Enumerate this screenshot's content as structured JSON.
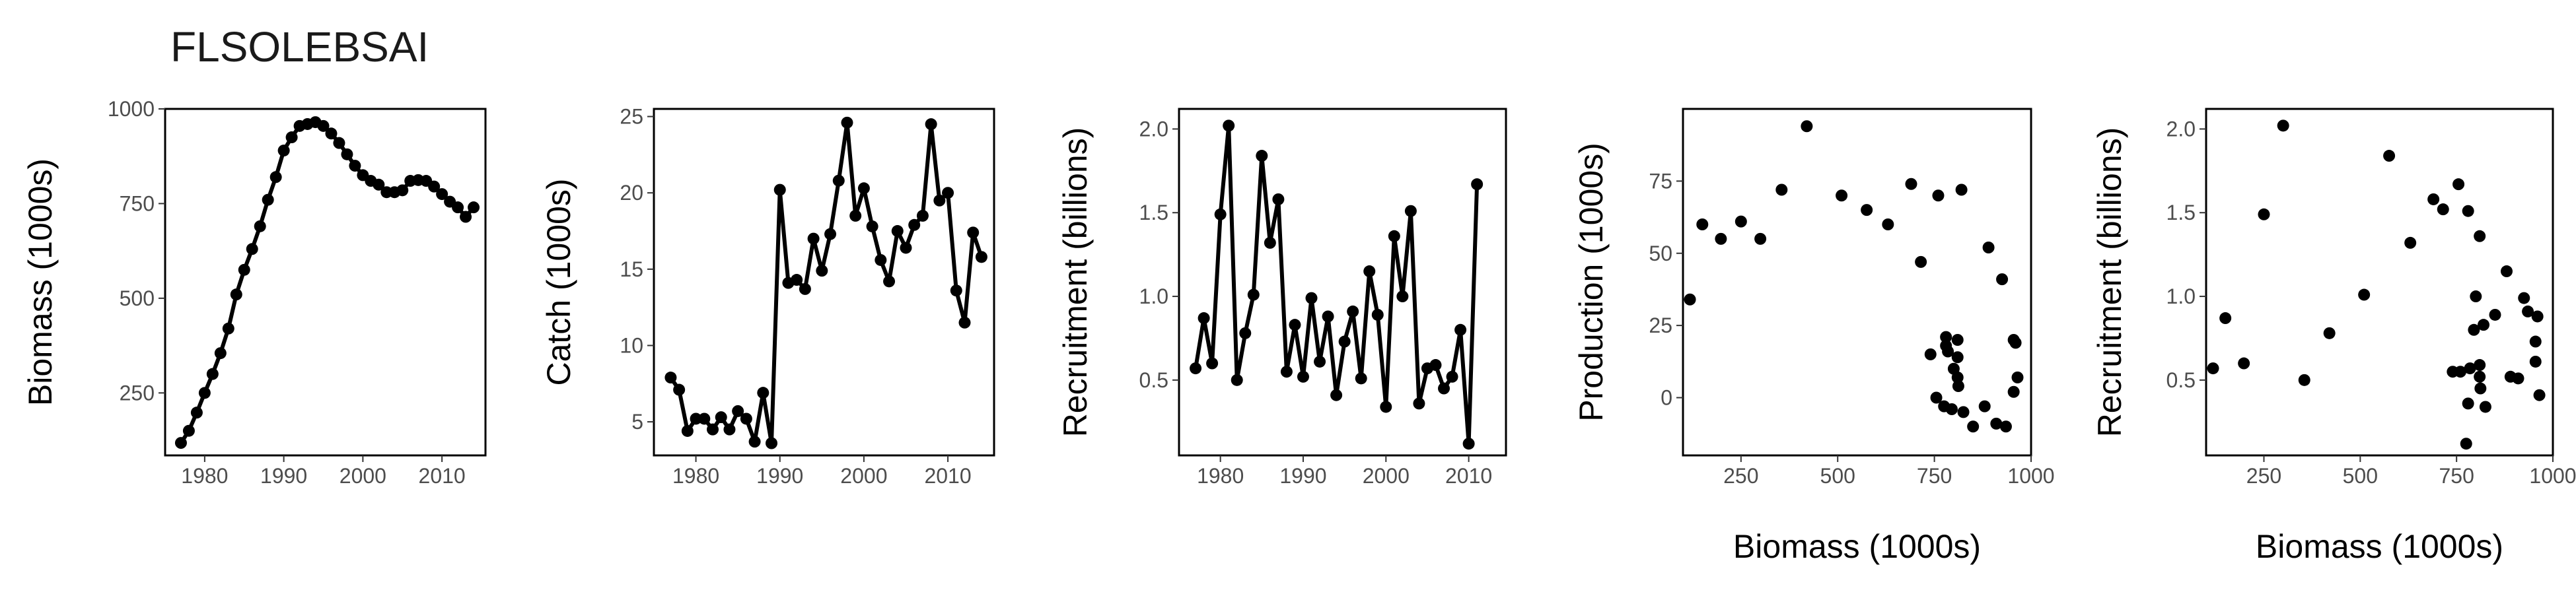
{
  "title": "FLSOLEBSAI",
  "chart_data": [
    {
      "type": "line",
      "xlabel": "",
      "ylabel": "Biomass (1000s)",
      "xlim": [
        1975,
        2015.5
      ],
      "ylim": [
        85,
        1000
      ],
      "xticks": [
        1980,
        1990,
        2000,
        2010
      ],
      "yticks": [
        250,
        500,
        750,
        1000
      ],
      "x": [
        1977,
        1978,
        1979,
        1980,
        1981,
        1982,
        1983,
        1984,
        1985,
        1986,
        1987,
        1988,
        1989,
        1990,
        1991,
        1992,
        1993,
        1994,
        1995,
        1996,
        1997,
        1998,
        1999,
        2000,
        2001,
        2002,
        2003,
        2004,
        2005,
        2006,
        2007,
        2008,
        2009,
        2010,
        2011,
        2012,
        2013,
        2014
      ],
      "y": [
        118,
        150,
        198,
        250,
        300,
        355,
        420,
        510,
        575,
        630,
        690,
        760,
        820,
        890,
        925,
        955,
        960,
        965,
        955,
        935,
        910,
        880,
        850,
        825,
        810,
        800,
        780,
        780,
        785,
        810,
        812,
        810,
        795,
        775,
        755,
        740,
        715,
        740
      ]
    },
    {
      "type": "line",
      "xlabel": "",
      "ylabel": "Catch (1000s)",
      "xlim": [
        1975,
        2015.5
      ],
      "ylim": [
        2.8,
        25.5
      ],
      "xticks": [
        1980,
        1990,
        2000,
        2010
      ],
      "yticks": [
        5,
        10,
        15,
        20,
        25
      ],
      "x": [
        1977,
        1978,
        1979,
        1980,
        1981,
        1982,
        1983,
        1984,
        1985,
        1986,
        1987,
        1988,
        1989,
        1990,
        1991,
        1992,
        1993,
        1994,
        1995,
        1996,
        1997,
        1998,
        1999,
        2000,
        2001,
        2002,
        2003,
        2004,
        2005,
        2006,
        2007,
        2008,
        2009,
        2010,
        2011,
        2012,
        2013,
        2014
      ],
      "y": [
        7.9,
        7.1,
        4.4,
        5.2,
        5.2,
        4.5,
        5.3,
        4.5,
        5.7,
        5.2,
        3.7,
        6.9,
        3.6,
        20.2,
        14.1,
        14.3,
        13.7,
        17.0,
        14.9,
        17.3,
        20.8,
        24.6,
        18.5,
        20.3,
        17.8,
        15.6,
        14.2,
        17.5,
        16.4,
        17.9,
        18.5,
        24.5,
        19.5,
        20.0,
        13.6,
        11.5,
        17.4,
        15.8
      ]
    },
    {
      "type": "line",
      "xlabel": "",
      "ylabel": "Recruitment (billions)",
      "xlim": [
        1975,
        2014.5
      ],
      "ylim": [
        0.05,
        2.12
      ],
      "xticks": [
        1980,
        1990,
        2000,
        2010
      ],
      "yticks": [
        0.5,
        1.0,
        1.5,
        2.0
      ],
      "ytick_labels": [
        "0.5",
        "1.0",
        "1.5",
        "2.0"
      ],
      "x": [
        1977,
        1978,
        1979,
        1980,
        1981,
        1982,
        1983,
        1984,
        1985,
        1986,
        1987,
        1988,
        1989,
        1990,
        1991,
        1992,
        1993,
        1994,
        1995,
        1996,
        1997,
        1998,
        1999,
        2000,
        2001,
        2002,
        2003,
        2004,
        2005,
        2006,
        2007,
        2008,
        2009,
        2010,
        2011
      ],
      "y": [
        0.57,
        0.87,
        0.6,
        1.49,
        2.02,
        0.5,
        0.78,
        1.01,
        1.84,
        1.32,
        1.58,
        0.55,
        0.83,
        0.52,
        0.99,
        0.61,
        0.88,
        0.41,
        0.73,
        0.91,
        0.51,
        1.15,
        0.89,
        0.34,
        1.36,
        1.0,
        1.51,
        0.36,
        0.57,
        0.59,
        0.45,
        0.52,
        0.8,
        0.12,
        1.67
      ]
    },
    {
      "type": "scatter",
      "xlabel": "Biomass (1000s)",
      "ylabel": "Production (1000s)",
      "xlim": [
        100,
        1000
      ],
      "ylim": [
        -20,
        100
      ],
      "xticks": [
        250,
        500,
        750,
        1000
      ],
      "yticks": [
        0,
        25,
        50,
        75
      ],
      "x": [
        118,
        150,
        198,
        250,
        300,
        355,
        420,
        510,
        575,
        630,
        690,
        760,
        820,
        890,
        925,
        955,
        960,
        965,
        955,
        935,
        910,
        880,
        850,
        825,
        810,
        800,
        780,
        780,
        785,
        810,
        812,
        810,
        795,
        775,
        755,
        740,
        715
      ],
      "y": [
        34,
        60,
        55,
        61,
        55,
        72,
        94,
        70,
        65,
        60,
        74,
        70,
        72,
        52,
        41,
        20,
        19,
        7,
        2,
        -10,
        -9,
        -3,
        -10,
        -5,
        7,
        10,
        18,
        21,
        16,
        20,
        4,
        14,
        -4,
        -3,
        0,
        15,
        47
      ]
    },
    {
      "type": "scatter",
      "xlabel": "Biomass (1000s)",
      "ylabel": "Recruitment (billions)",
      "xlim": [
        100,
        1000
      ],
      "ylim": [
        0.05,
        2.12
      ],
      "xticks": [
        250,
        500,
        750,
        1000
      ],
      "yticks": [
        0.5,
        1.0,
        1.5,
        2.0
      ],
      "ytick_labels": [
        "0.5",
        "1.0",
        "1.5",
        "2.0"
      ],
      "x": [
        118,
        150,
        198,
        250,
        300,
        355,
        420,
        510,
        575,
        630,
        690,
        760,
        820,
        890,
        925,
        955,
        960,
        965,
        955,
        935,
        910,
        880,
        850,
        825,
        810,
        800,
        780,
        780,
        785,
        810,
        812,
        810,
        795,
        775,
        755,
        740,
        715
      ],
      "y": [
        0.57,
        0.87,
        0.6,
        1.49,
        2.02,
        0.5,
        0.78,
        1.01,
        1.84,
        1.32,
        1.58,
        0.55,
        0.83,
        0.52,
        0.99,
        0.61,
        0.88,
        0.41,
        0.73,
        0.91,
        0.51,
        1.15,
        0.89,
        0.34,
        1.36,
        1.0,
        1.51,
        0.36,
        0.57,
        0.59,
        0.45,
        0.52,
        0.8,
        0.12,
        1.67,
        0.55,
        1.52
      ]
    }
  ]
}
